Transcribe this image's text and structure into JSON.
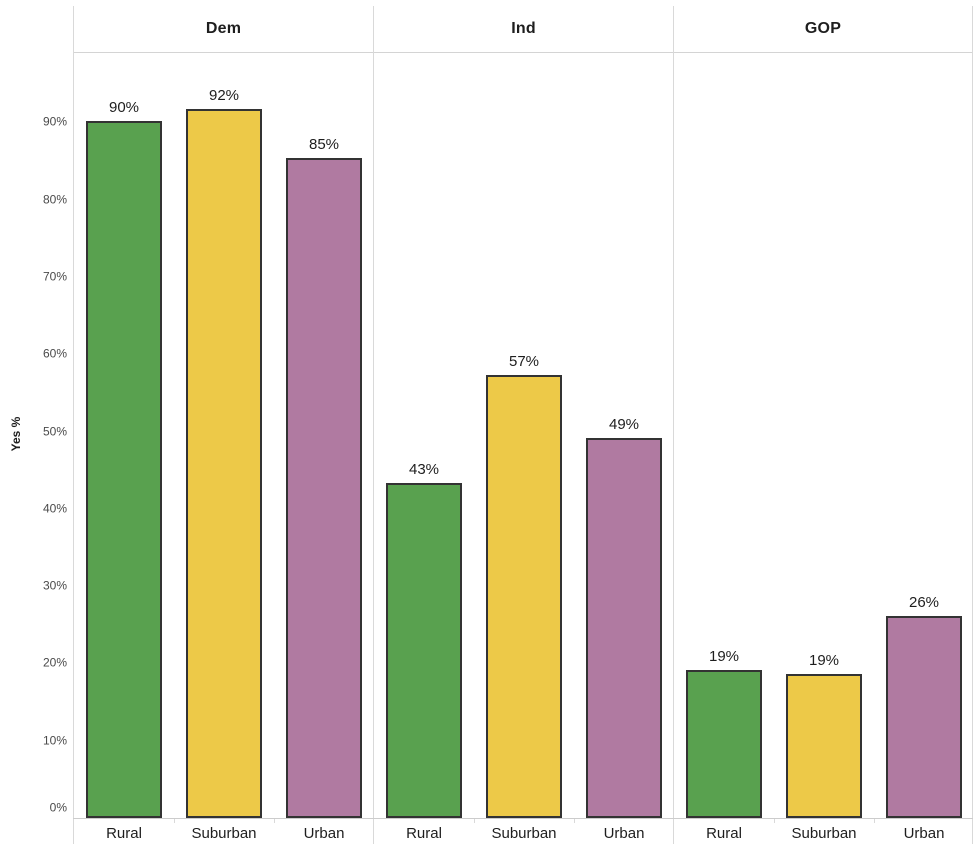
{
  "chart_data": {
    "type": "bar",
    "faceted": true,
    "title": "",
    "ylabel": "Yes %",
    "xlabel": "",
    "ylim": [
      0,
      100
    ],
    "grid": "off",
    "legend": "none",
    "yticks": [
      0,
      10,
      20,
      30,
      40,
      50,
      60,
      70,
      80,
      90
    ],
    "ytick_labels": [
      "0%",
      "10%",
      "20%",
      "30%",
      "40%",
      "50%",
      "60%",
      "70%",
      "80%",
      "90%"
    ],
    "categories": [
      "Rural",
      "Suburban",
      "Urban"
    ],
    "category_colors": [
      "#59A14F",
      "#EDC948",
      "#B07AA1"
    ],
    "bar_outline_color": "#333333",
    "line_color": "#d9d9d9",
    "text_color": "#1e1e1e",
    "facets": [
      {
        "label": "Dem",
        "values": [
          90.2,
          91.7,
          85.4
        ],
        "bar_labels": [
          "90%",
          "92%",
          "85%"
        ]
      },
      {
        "label": "Ind",
        "values": [
          43.3,
          57.3,
          49.2
        ],
        "bar_labels": [
          "43%",
          "57%",
          "49%"
        ]
      },
      {
        "label": "GOP",
        "values": [
          19.1,
          18.6,
          26.1
        ],
        "bar_labels": [
          "19%",
          "19%",
          "26%"
        ]
      }
    ]
  }
}
